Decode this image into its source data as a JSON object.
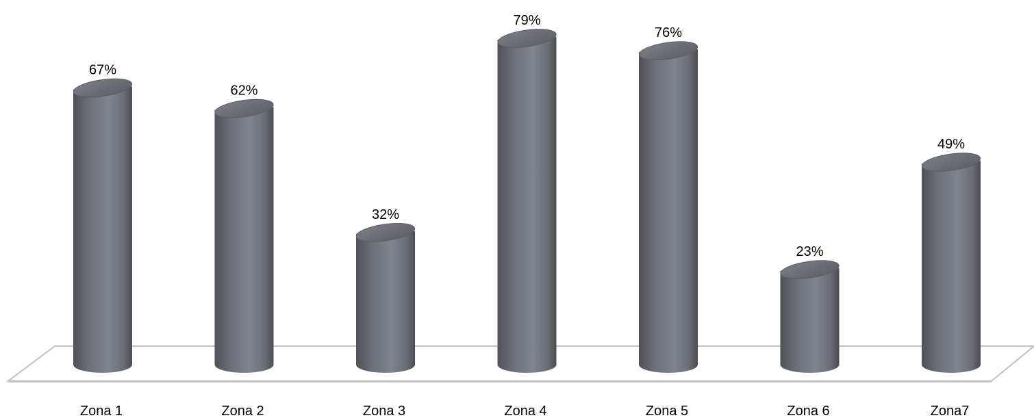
{
  "chart_data": {
    "type": "bar",
    "style": "3d-cylinder",
    "categories": [
      "Zona 1",
      "Zona 2",
      "Zona 3",
      "Zona 4",
      "Zona 5",
      "Zona 6",
      "Zona7"
    ],
    "values": [
      67,
      62,
      32,
      79,
      76,
      23,
      49
    ],
    "value_labels": [
      "67%",
      "62%",
      "32%",
      "79%",
      "76%",
      "23%",
      "49%"
    ],
    "ylim": [
      0,
      100
    ],
    "grid": false,
    "legend": "none",
    "bar_color": "#6f737b",
    "floor_color": "#ffffff"
  }
}
